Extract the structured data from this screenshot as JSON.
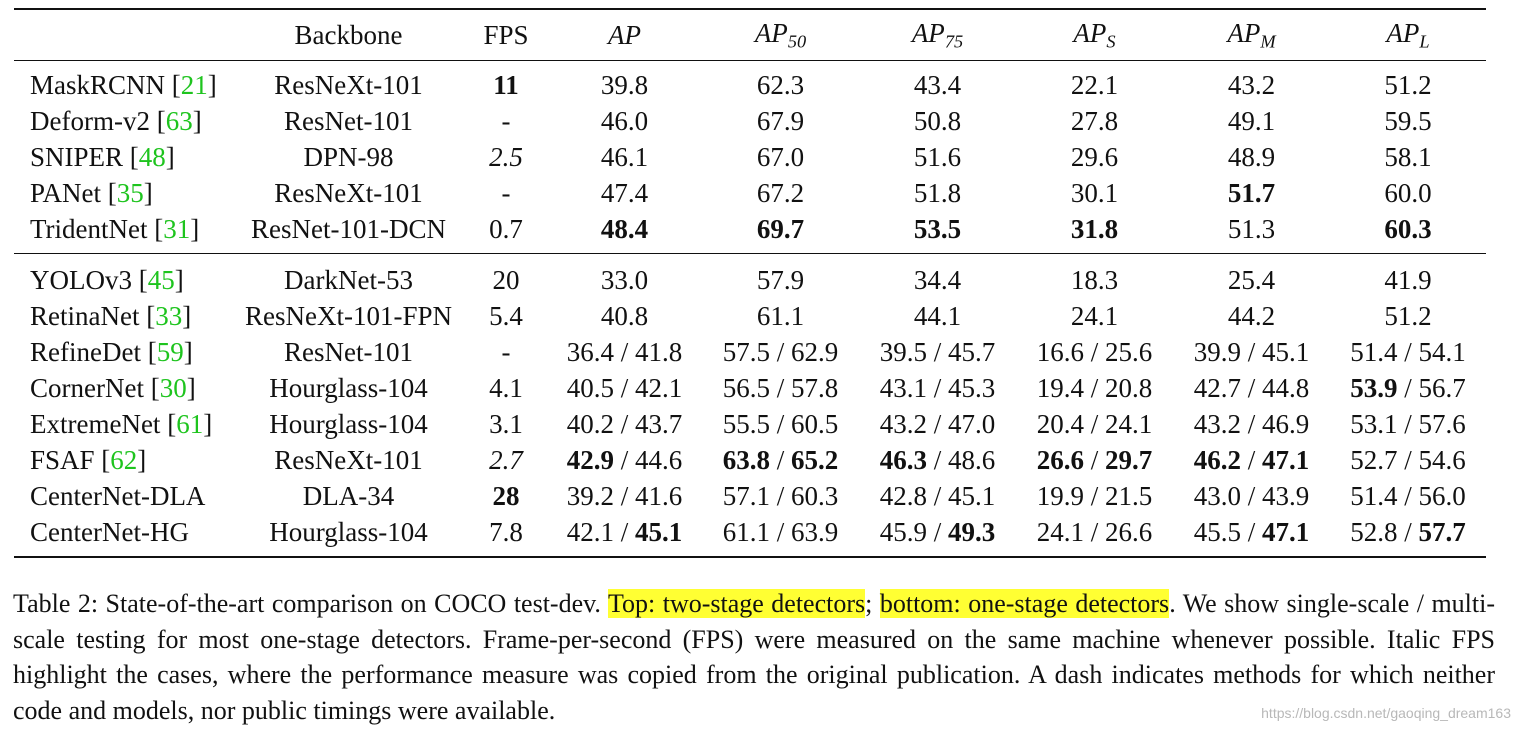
{
  "table": {
    "headers": {
      "method": "",
      "backbone": "Backbone",
      "fps": "FPS",
      "ap": "AP",
      "ap50": "50",
      "ap75": "75",
      "aps": "S",
      "apm": "M",
      "apl": "L"
    },
    "two_stage": [
      {
        "name": "MaskRCNN",
        "ref": "21",
        "backbone": "ResNeXt-101",
        "fps": "11",
        "fps_style": "b",
        "cells": [
          [
            [
              "39.8",
              ""
            ]
          ],
          [
            [
              "62.3",
              ""
            ]
          ],
          [
            [
              "43.4",
              ""
            ]
          ],
          [
            [
              "22.1",
              ""
            ]
          ],
          [
            [
              "43.2",
              ""
            ]
          ],
          [
            [
              "51.2",
              ""
            ]
          ]
        ]
      },
      {
        "name": "Deform-v2",
        "ref": "63",
        "backbone": "ResNet-101",
        "fps": "-",
        "fps_style": "",
        "cells": [
          [
            [
              "46.0",
              ""
            ]
          ],
          [
            [
              "67.9",
              ""
            ]
          ],
          [
            [
              "50.8",
              ""
            ]
          ],
          [
            [
              "27.8",
              ""
            ]
          ],
          [
            [
              "49.1",
              ""
            ]
          ],
          [
            [
              "59.5",
              ""
            ]
          ]
        ]
      },
      {
        "name": "SNIPER",
        "ref": "48",
        "backbone": "DPN-98",
        "fps": "2.5",
        "fps_style": "it",
        "cells": [
          [
            [
              "46.1",
              ""
            ]
          ],
          [
            [
              "67.0",
              ""
            ]
          ],
          [
            [
              "51.6",
              ""
            ]
          ],
          [
            [
              "29.6",
              ""
            ]
          ],
          [
            [
              "48.9",
              ""
            ]
          ],
          [
            [
              "58.1",
              ""
            ]
          ]
        ]
      },
      {
        "name": "PANet",
        "ref": "35",
        "backbone": "ResNeXt-101",
        "fps": "-",
        "fps_style": "",
        "cells": [
          [
            [
              "47.4",
              ""
            ]
          ],
          [
            [
              "67.2",
              ""
            ]
          ],
          [
            [
              "51.8",
              ""
            ]
          ],
          [
            [
              "30.1",
              ""
            ]
          ],
          [
            [
              "51.7",
              "b"
            ]
          ],
          [
            [
              "60.0",
              ""
            ]
          ]
        ]
      },
      {
        "name": "TridentNet",
        "ref": "31",
        "backbone": "ResNet-101-DCN",
        "fps": "0.7",
        "fps_style": "",
        "cells": [
          [
            [
              "48.4",
              "b"
            ]
          ],
          [
            [
              "69.7",
              "b"
            ]
          ],
          [
            [
              "53.5",
              "b"
            ]
          ],
          [
            [
              "31.8",
              "b"
            ]
          ],
          [
            [
              "51.3",
              ""
            ]
          ],
          [
            [
              "60.3",
              "b"
            ]
          ]
        ]
      }
    ],
    "one_stage": [
      {
        "name": "YOLOv3",
        "ref": "45",
        "backbone": "DarkNet-53",
        "fps": "20",
        "fps_style": "",
        "cells": [
          [
            [
              "33.0",
              ""
            ]
          ],
          [
            [
              "57.9",
              ""
            ]
          ],
          [
            [
              "34.4",
              ""
            ]
          ],
          [
            [
              "18.3",
              ""
            ]
          ],
          [
            [
              "25.4",
              ""
            ]
          ],
          [
            [
              "41.9",
              ""
            ]
          ]
        ]
      },
      {
        "name": "RetinaNet",
        "ref": "33",
        "backbone": "ResNeXt-101-FPN",
        "fps": "5.4",
        "fps_style": "",
        "cells": [
          [
            [
              "40.8",
              ""
            ]
          ],
          [
            [
              "61.1",
              ""
            ]
          ],
          [
            [
              "44.1",
              ""
            ]
          ],
          [
            [
              "24.1",
              ""
            ]
          ],
          [
            [
              "44.2",
              ""
            ]
          ],
          [
            [
              "51.2",
              ""
            ]
          ]
        ]
      },
      {
        "name": "RefineDet",
        "ref": "59",
        "backbone": "ResNet-101",
        "fps": "-",
        "fps_style": "",
        "cells": [
          [
            [
              "36.4",
              ""
            ],
            [
              "41.8",
              ""
            ]
          ],
          [
            [
              "57.5",
              ""
            ],
            [
              "62.9",
              ""
            ]
          ],
          [
            [
              "39.5",
              ""
            ],
            [
              "45.7",
              ""
            ]
          ],
          [
            [
              "16.6",
              ""
            ],
            [
              "25.6",
              ""
            ]
          ],
          [
            [
              "39.9",
              ""
            ],
            [
              "45.1",
              ""
            ]
          ],
          [
            [
              "51.4",
              ""
            ],
            [
              "54.1",
              ""
            ]
          ]
        ]
      },
      {
        "name": "CornerNet",
        "ref": "30",
        "backbone": "Hourglass-104",
        "fps": "4.1",
        "fps_style": "",
        "cells": [
          [
            [
              "40.5",
              ""
            ],
            [
              "42.1",
              ""
            ]
          ],
          [
            [
              "56.5",
              ""
            ],
            [
              "57.8",
              ""
            ]
          ],
          [
            [
              "43.1",
              ""
            ],
            [
              "45.3",
              ""
            ]
          ],
          [
            [
              "19.4",
              ""
            ],
            [
              "20.8",
              ""
            ]
          ],
          [
            [
              "42.7",
              ""
            ],
            [
              "44.8",
              ""
            ]
          ],
          [
            [
              "53.9",
              "b"
            ],
            [
              "56.7",
              ""
            ]
          ]
        ]
      },
      {
        "name": "ExtremeNet",
        "ref": "61",
        "backbone": "Hourglass-104",
        "fps": "3.1",
        "fps_style": "",
        "cells": [
          [
            [
              "40.2",
              ""
            ],
            [
              "43.7",
              ""
            ]
          ],
          [
            [
              "55.5",
              ""
            ],
            [
              "60.5",
              ""
            ]
          ],
          [
            [
              "43.2",
              ""
            ],
            [
              "47.0",
              ""
            ]
          ],
          [
            [
              "20.4",
              ""
            ],
            [
              "24.1",
              ""
            ]
          ],
          [
            [
              "43.2",
              ""
            ],
            [
              "46.9",
              ""
            ]
          ],
          [
            [
              "53.1",
              ""
            ],
            [
              "57.6",
              ""
            ]
          ]
        ]
      },
      {
        "name": "FSAF",
        "ref": "62",
        "backbone": "ResNeXt-101",
        "fps": "2.7",
        "fps_style": "it",
        "cells": [
          [
            [
              "42.9",
              "b"
            ],
            [
              "44.6",
              ""
            ]
          ],
          [
            [
              "63.8",
              "b"
            ],
            [
              "65.2",
              "b"
            ]
          ],
          [
            [
              "46.3",
              "b"
            ],
            [
              "48.6",
              ""
            ]
          ],
          [
            [
              "26.6",
              "b"
            ],
            [
              "29.7",
              "b"
            ]
          ],
          [
            [
              "46.2",
              "b"
            ],
            [
              "47.1",
              "b"
            ]
          ],
          [
            [
              "52.7",
              ""
            ],
            [
              "54.6",
              ""
            ]
          ]
        ]
      },
      {
        "name": "CenterNet-DLA",
        "ref": "",
        "backbone": "DLA-34",
        "fps": "28",
        "fps_style": "b",
        "cells": [
          [
            [
              "39.2",
              ""
            ],
            [
              "41.6",
              ""
            ]
          ],
          [
            [
              "57.1",
              ""
            ],
            [
              "60.3",
              ""
            ]
          ],
          [
            [
              "42.8",
              ""
            ],
            [
              "45.1",
              ""
            ]
          ],
          [
            [
              "19.9",
              ""
            ],
            [
              "21.5",
              ""
            ]
          ],
          [
            [
              "43.0",
              ""
            ],
            [
              "43.9",
              ""
            ]
          ],
          [
            [
              "51.4",
              ""
            ],
            [
              "56.0",
              ""
            ]
          ]
        ]
      },
      {
        "name": "CenterNet-HG",
        "ref": "",
        "backbone": "Hourglass-104",
        "fps": "7.8",
        "fps_style": "",
        "cells": [
          [
            [
              "42.1",
              ""
            ],
            [
              "45.1",
              "b"
            ]
          ],
          [
            [
              "61.1",
              ""
            ],
            [
              "63.9",
              ""
            ]
          ],
          [
            [
              "45.9",
              ""
            ],
            [
              "49.3",
              "b"
            ]
          ],
          [
            [
              "24.1",
              ""
            ],
            [
              "26.6",
              ""
            ]
          ],
          [
            [
              "45.5",
              ""
            ],
            [
              "47.1",
              "b"
            ]
          ],
          [
            [
              "52.8",
              ""
            ],
            [
              "57.7",
              "b"
            ]
          ]
        ]
      }
    ]
  },
  "caption": {
    "prefix": "Table 2: State-of-the-art comparison on COCO test-dev. ",
    "highlight_top": "Top: two-stage detectors",
    "sep": "; ",
    "highlight_bottom": "bottom: one-stage detectors",
    "rest": ". We show single-scale / multi-scale testing for most one-stage detectors. Frame-per-second (FPS) were measured on the same machine whenever possible. Italic FPS highlight the cases, where the performance measure was copied from the original publication. A dash indicates methods for which neither code and models, nor public timings were available."
  },
  "watermark": "https://blog.csdn.net/gaoqing_dream163",
  "colors": {
    "ref": "#1ec41e",
    "highlight": "#ffff33"
  }
}
